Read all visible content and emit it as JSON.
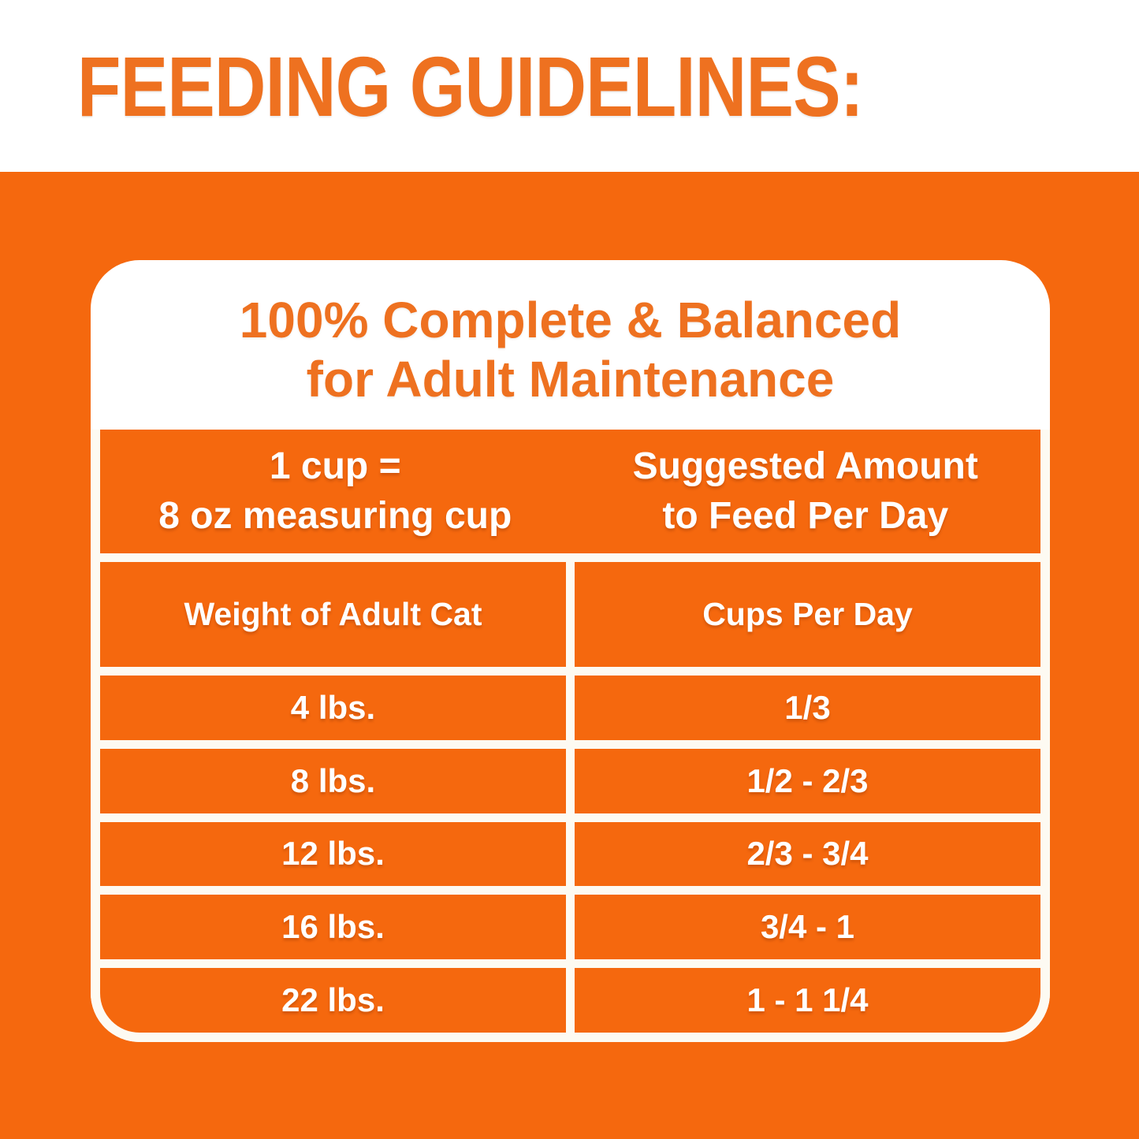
{
  "page": {
    "heading": "FEEDING GUIDELINES:"
  },
  "colors": {
    "brand_orange": "#f5680e",
    "heading_orange": "#ee7120",
    "gridline_white": "#fdfaf2",
    "table_text": "#ffffff"
  },
  "card": {
    "title_line1": "100% Complete & Balanced",
    "title_line2": "for Adult Maintenance"
  },
  "table": {
    "header_left_line1": "1 cup =",
    "header_left_line2": "8 oz measuring cup",
    "header_right_line1": "Suggested Amount",
    "header_right_line2": "to Feed Per Day",
    "col1_header": "Weight of Adult Cat",
    "col2_header": "Cups Per Day",
    "rows": [
      {
        "weight": "4 lbs.",
        "cups": "1/3"
      },
      {
        "weight": "8 lbs.",
        "cups": "1/2 - 2/3"
      },
      {
        "weight": "12 lbs.",
        "cups": "2/3 - 3/4"
      },
      {
        "weight": "16 lbs.",
        "cups": "3/4 - 1"
      },
      {
        "weight": "22 lbs.",
        "cups": "1 - 1 1/4"
      }
    ]
  },
  "chart_data": {
    "type": "table",
    "title": "100% Complete & Balanced for Adult Maintenance",
    "note": "1 cup = 8 oz measuring cup",
    "subtitle": "Suggested Amount to Feed Per Day",
    "columns": [
      "Weight of Adult Cat",
      "Cups Per Day"
    ],
    "rows": [
      [
        "4 lbs.",
        "1/3"
      ],
      [
        "8 lbs.",
        "1/2 - 2/3"
      ],
      [
        "12 lbs.",
        "2/3 - 3/4"
      ],
      [
        "16 lbs.",
        "3/4 - 1"
      ],
      [
        "22 lbs.",
        "1 - 1 1/4"
      ]
    ]
  }
}
